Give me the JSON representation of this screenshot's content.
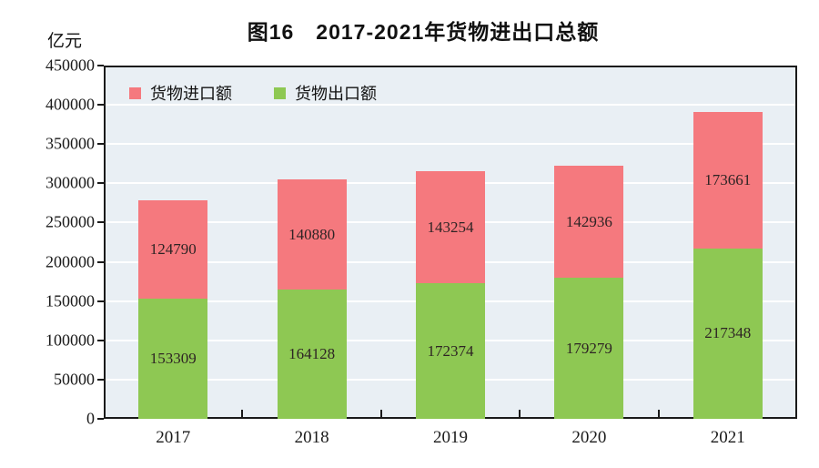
{
  "title": "图16　2017-2021年货物进出口总额",
  "unit_label": "亿元",
  "legend": {
    "import_label": "货物进口额",
    "export_label": "货物出口额"
  },
  "colors": {
    "import": "#f5797e",
    "export": "#8ec853",
    "plot_background": "#e9eff4",
    "gridline": "#ffffff",
    "axis": "#1a1a1a"
  },
  "chart_data": {
    "type": "bar",
    "stacked": true,
    "title": "图16　2017-2021年货物进出口总额",
    "ylabel": "亿元",
    "categories": [
      "2017",
      "2018",
      "2019",
      "2020",
      "2021"
    ],
    "series": [
      {
        "name": "货物出口额",
        "color": "#8ec853",
        "values": [
          153309,
          164128,
          172374,
          179279,
          217348
        ]
      },
      {
        "name": "货物进口额",
        "color": "#f5797e",
        "values": [
          124790,
          140880,
          143254,
          142936,
          173661
        ]
      }
    ],
    "ylim": [
      0,
      450000
    ],
    "ytick_step": 50000,
    "grid": true,
    "legend_position": "top-left-inside"
  }
}
